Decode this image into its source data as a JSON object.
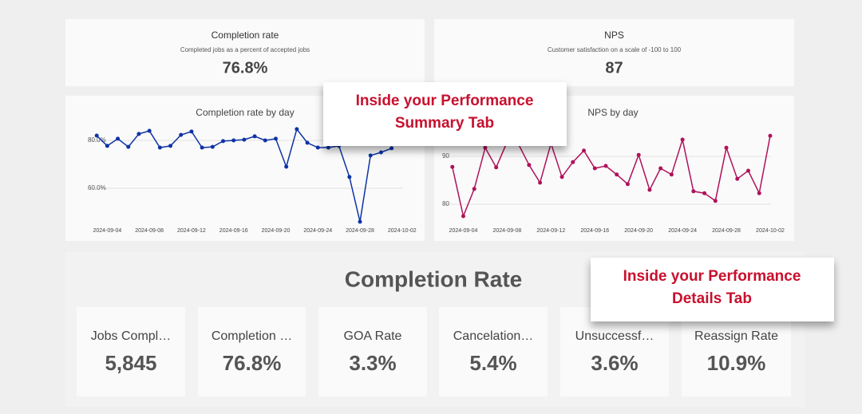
{
  "summary_cards": [
    {
      "title": "Completion rate",
      "subtitle": "Completed jobs as a percent of accepted jobs",
      "value": "76.8%"
    },
    {
      "title": "NPS",
      "subtitle": "Customer satisfaction on a scale of -100 to 100",
      "value": "87"
    }
  ],
  "chart_data": [
    {
      "type": "line",
      "title": "Completion rate by day",
      "color": "#0d33a6",
      "grid": true,
      "x": [
        "2024-09-03",
        "2024-09-04",
        "2024-09-05",
        "2024-09-06",
        "2024-09-07",
        "2024-09-08",
        "2024-09-09",
        "2024-09-10",
        "2024-09-11",
        "2024-09-12",
        "2024-09-13",
        "2024-09-14",
        "2024-09-15",
        "2024-09-16",
        "2024-09-17",
        "2024-09-18",
        "2024-09-19",
        "2024-09-20",
        "2024-09-21",
        "2024-09-22",
        "2024-09-23",
        "2024-09-24",
        "2024-09-25",
        "2024-09-26",
        "2024-09-27",
        "2024-09-28",
        "2024-09-29",
        "2024-09-30",
        "2024-10-01"
      ],
      "values": [
        82,
        77.7,
        80.7,
        77.3,
        82.7,
        84,
        77,
        77.7,
        82.3,
        83.7,
        77,
        77.3,
        79.7,
        80,
        80.3,
        81.7,
        80,
        80.7,
        69,
        84.7,
        79,
        77,
        77,
        77.7,
        64.7,
        46,
        73.7,
        75,
        76.7
      ],
      "xlim": [
        "2024-09-02",
        "2024-10-03"
      ],
      "ylim": [
        45,
        88
      ],
      "xticks": [
        "2024-09-04",
        "2024-09-08",
        "2024-09-12",
        "2024-09-16",
        "2024-09-20",
        "2024-09-24",
        "2024-09-28",
        "2024-10-02"
      ],
      "yticks": [
        {
          "value": 60,
          "label": "60.0%"
        },
        {
          "value": 80,
          "label": "80.0%"
        }
      ]
    },
    {
      "type": "line",
      "title": "NPS by day",
      "color": "#b0125b",
      "grid": true,
      "x": [
        "2024-09-03",
        "2024-09-04",
        "2024-09-05",
        "2024-09-06",
        "2024-09-07",
        "2024-09-08",
        "2024-09-09",
        "2024-09-10",
        "2024-09-11",
        "2024-09-12",
        "2024-09-13",
        "2024-09-14",
        "2024-09-15",
        "2024-09-16",
        "2024-09-17",
        "2024-09-18",
        "2024-09-19",
        "2024-09-20",
        "2024-09-21",
        "2024-09-22",
        "2024-09-23",
        "2024-09-24",
        "2024-09-25",
        "2024-09-26",
        "2024-09-27",
        "2024-09-28",
        "2024-09-29",
        "2024-09-30",
        "2024-10-01",
        "2024-10-02"
      ],
      "values": [
        87.8,
        77.5,
        83.2,
        91.8,
        87.7,
        93,
        92.7,
        88.2,
        84.5,
        92.7,
        85.7,
        88.8,
        91.2,
        87.5,
        88,
        86.2,
        84.2,
        90.3,
        83,
        87.5,
        86.2,
        93.5,
        82.7,
        82.3,
        80.7,
        91.8,
        85.3,
        87,
        82.3,
        94.3
      ],
      "xlim": [
        "2024-09-02",
        "2024-10-03"
      ],
      "ylim": [
        75,
        96
      ],
      "xticks": [
        "2024-09-04",
        "2024-09-08",
        "2024-09-12",
        "2024-09-16",
        "2024-09-20",
        "2024-09-24",
        "2024-09-28",
        "2024-10-02"
      ],
      "yticks": [
        80,
        90
      ]
    }
  ],
  "details": {
    "title": "Completion Rate",
    "cards": [
      {
        "label": "Jobs Compl…",
        "value": "5,845"
      },
      {
        "label": "Completion …",
        "value": "76.8%"
      },
      {
        "label": "GOA Rate",
        "value": "3.3%"
      },
      {
        "label": "Cancelation…",
        "value": "5.4%"
      },
      {
        "label": "Unsuccessf…",
        "value": "3.6%"
      },
      {
        "label": "Reassign Rate",
        "value": "10.9%"
      }
    ]
  },
  "callouts": [
    {
      "lines": [
        "Inside your Performance",
        "Summary Tab"
      ]
    },
    {
      "lines": [
        "Inside your Performance",
        "Details Tab"
      ]
    }
  ]
}
